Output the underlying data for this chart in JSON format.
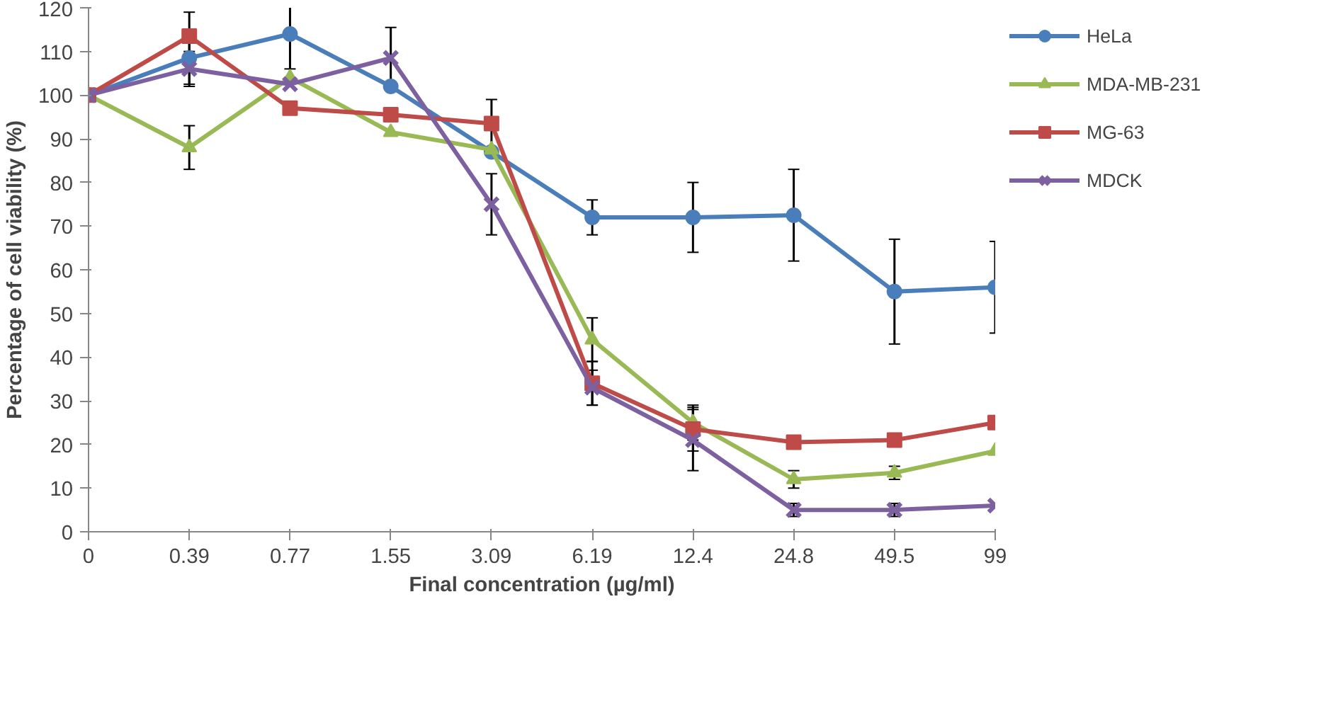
{
  "chart_data": {
    "type": "line",
    "xlabel": "Final concentration (µg/ml)",
    "ylabel": "Percentage of cell viability (%)",
    "categories": [
      "0",
      "0.39",
      "0.77",
      "1.55",
      "3.09",
      "6.19",
      "12.4",
      "24.8",
      "49.5",
      "99"
    ],
    "ylim": [
      0,
      120
    ],
    "yticks": [
      0,
      10,
      20,
      30,
      40,
      50,
      60,
      70,
      80,
      90,
      100,
      110,
      120
    ],
    "grid": false,
    "legend": "right",
    "series": [
      {
        "name": "HeLa",
        "color": "#4a7ebb",
        "marker": "circle",
        "values": [
          100,
          108.5,
          114,
          102,
          87,
          72,
          72,
          72.5,
          55,
          56
        ],
        "errors": [
          null,
          6,
          8,
          null,
          null,
          4,
          8,
          10.5,
          12,
          10.5
        ]
      },
      {
        "name": "MDA-MB-231",
        "color": "#98b954",
        "marker": "triangle",
        "values": [
          100,
          88,
          104,
          91.5,
          87.5,
          44,
          25,
          12,
          13.5,
          18.5
        ],
        "errors": [
          null,
          5,
          null,
          null,
          null,
          5,
          4,
          2,
          1.5,
          null
        ]
      },
      {
        "name": "MG-63",
        "color": "#be4b48",
        "marker": "square",
        "values": [
          100,
          113.5,
          97,
          95.5,
          93.5,
          34,
          23.5,
          20.5,
          21,
          25
        ],
        "errors": [
          null,
          5.5,
          null,
          null,
          5.5,
          5,
          5,
          null,
          null,
          null
        ]
      },
      {
        "name": "MDCK",
        "color": "#7d60a0",
        "marker": "x",
        "values": [
          100,
          106,
          102.5,
          108.5,
          75,
          33,
          21,
          5,
          5,
          6
        ],
        "errors": [
          null,
          4,
          null,
          7,
          7,
          4,
          7,
          1.5,
          1.5,
          null
        ]
      }
    ]
  }
}
